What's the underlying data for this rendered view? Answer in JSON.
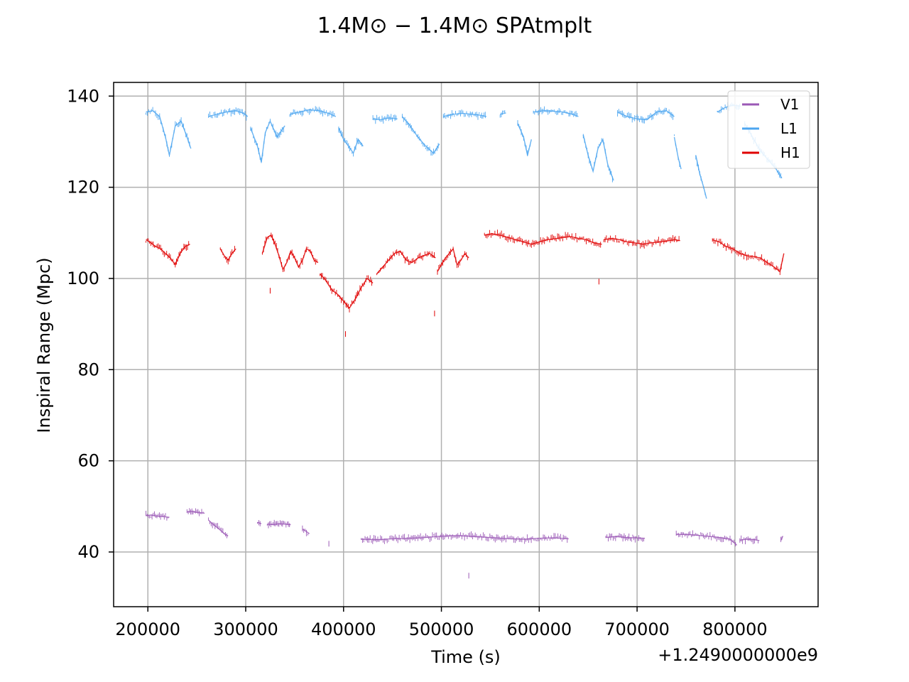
{
  "chart_data": {
    "type": "scatter",
    "title": "1.4M⊙ − 1.4M⊙ SPAtmplt",
    "xlabel": "Time (s)",
    "ylabel": "Inspiral Range (Mpc)",
    "x_offset_label": "+1.2490000000e9",
    "xlim": [
      165000,
      885000
    ],
    "ylim": [
      28,
      143
    ],
    "x_ticks": [
      200000,
      300000,
      400000,
      500000,
      600000,
      700000,
      800000
    ],
    "x_tick_labels": [
      "200000",
      "300000",
      "400000",
      "500000",
      "600000",
      "700000",
      "800000"
    ],
    "y_ticks": [
      40,
      60,
      80,
      100,
      120,
      140
    ],
    "y_tick_labels": [
      "40",
      "60",
      "80",
      "100",
      "120",
      "140"
    ],
    "grid": true,
    "legend_position": "top-right",
    "series": [
      {
        "name": "V1",
        "color": "#9b59b6",
        "segments": [
          {
            "x": [
              198000,
              203000,
              208000,
              213000,
              218000,
              222000
            ],
            "y": [
              48.0,
              48.1,
              47.9,
              47.8,
              47.7,
              47.6
            ]
          },
          {
            "x": [
              240000,
              245000,
              250000,
              255000,
              258000
            ],
            "y": [
              48.8,
              48.9,
              48.7,
              48.6,
              48.5
            ]
          },
          {
            "x": [
              262000,
              266000,
              270000,
              274000,
              278000,
              282000
            ],
            "y": [
              47.0,
              46.2,
              45.5,
              44.8,
              44.0,
              43.5
            ]
          },
          {
            "x": [
              312000,
              316000
            ],
            "y": [
              46.5,
              46.2
            ]
          },
          {
            "x": [
              322000,
              328000,
              334000,
              340000,
              346000
            ],
            "y": [
              46.1,
              46.0,
              46.2,
              46.1,
              46.0
            ]
          },
          {
            "x": [
              358000,
              362000,
              365000
            ],
            "y": [
              45.0,
              44.5,
              44.0
            ]
          },
          {
            "x": [
              418000,
              435000,
              450000,
              465000,
              480000,
              495000,
              510000,
              525000,
              540000,
              555000,
              570000,
              585000,
              600000,
              615000,
              630000
            ],
            "y": [
              42.8,
              42.7,
              42.9,
              43.0,
              43.1,
              43.4,
              43.6,
              43.5,
              43.3,
              43.1,
              42.9,
              42.8,
              43.0,
              43.1,
              42.9
            ]
          },
          {
            "x": [
              668000,
              678000,
              688000,
              698000,
              708000
            ],
            "y": [
              43.2,
              43.4,
              43.2,
              43.1,
              43.0
            ]
          },
          {
            "x": [
              740000,
              750000,
              765000,
              780000,
              795000,
              802000
            ],
            "y": [
              43.8,
              43.9,
              43.6,
              43.3,
              42.8,
              41.5
            ]
          },
          {
            "x": [
              805000,
              812000,
              820000,
              825000
            ],
            "y": [
              42.6,
              42.8,
              42.7,
              42.5
            ]
          },
          {
            "x": [
              847000,
              849000
            ],
            "y": [
              42.5,
              43.5
            ]
          }
        ],
        "outliers": [
          {
            "x": 528000,
            "y": 34.5
          },
          {
            "x": 385000,
            "y": 41.5
          }
        ]
      },
      {
        "name": "L1",
        "color": "#4da6f0",
        "segments": [
          {
            "x": [
              198000,
              205000,
              212000,
              218000,
              222000,
              228000,
              234000,
              240000,
              244000
            ],
            "y": [
              136.5,
              136.8,
              135.5,
              131.0,
              127.0,
              133.5,
              134.5,
              131.0,
              128.5
            ]
          },
          {
            "x": [
              262000,
              270000,
              280000,
              290000,
              298000,
              302000
            ],
            "y": [
              135.5,
              136.0,
              136.5,
              136.8,
              136.2,
              135.5
            ]
          },
          {
            "x": [
              305000,
              312000,
              316000,
              320000,
              325000,
              332000,
              340000
            ],
            "y": [
              133.0,
              129.0,
              125.5,
              132.0,
              134.5,
              131.0,
              133.5
            ]
          },
          {
            "x": [
              345000,
              355000,
              365000,
              375000,
              385000,
              392000
            ],
            "y": [
              136.0,
              136.5,
              137.0,
              136.8,
              136.2,
              135.5
            ]
          },
          {
            "x": [
              395000,
              400000,
              405000,
              410000,
              415000,
              420000
            ],
            "y": [
              133.0,
              130.5,
              129.0,
              127.5,
              130.5,
              129.0
            ]
          },
          {
            "x": [
              430000,
              438000,
              446000,
              455000
            ],
            "y": [
              135.0,
              134.8,
              135.2,
              135.0
            ]
          },
          {
            "x": [
              460000,
              468000,
              476000,
              484000,
              492000,
              498000
            ],
            "y": [
              135.5,
              133.5,
              131.0,
              129.0,
              127.5,
              129.5
            ]
          },
          {
            "x": [
              502000,
              512000,
              522000,
              532000,
              540000,
              546000
            ],
            "y": [
              135.5,
              136.0,
              136.2,
              136.0,
              135.8,
              135.5
            ]
          },
          {
            "x": [
              560000,
              566000
            ],
            "y": [
              136.0,
              136.3
            ]
          },
          {
            "x": [
              578000,
              584000,
              588000,
              592000
            ],
            "y": [
              134.0,
              131.0,
              127.0,
              130.5
            ]
          },
          {
            "x": [
              594000,
              604000,
              614000,
              624000,
              634000,
              640000
            ],
            "y": [
              136.5,
              136.8,
              136.7,
              136.5,
              136.0,
              135.5
            ]
          },
          {
            "x": [
              645000,
              650000,
              655000,
              660000,
              665000,
              670000,
              676000
            ],
            "y": [
              131.5,
              127.0,
              123.5,
              128.5,
              130.5,
              125.0,
              121.5
            ]
          },
          {
            "x": [
              680000,
              690000,
              700000,
              710000,
              720000,
              730000,
              738000
            ],
            "y": [
              136.5,
              135.5,
              135.0,
              134.8,
              136.5,
              136.8,
              135.5
            ]
          },
          {
            "x": [
              738000,
              742000,
              745000
            ],
            "y": [
              131.0,
              126.5,
              124.0
            ]
          },
          {
            "x": [
              760000,
              764000,
              768000,
              771000
            ],
            "y": [
              127.0,
              123.0,
              120.0,
              117.5
            ]
          },
          {
            "x": [
              782000,
              790000,
              798000,
              806000
            ],
            "y": [
              136.5,
              137.5,
              138.0,
              137.8
            ]
          },
          {
            "x": [
              810000,
              818000,
              826000,
              834000,
              842000,
              848000
            ],
            "y": [
              134.0,
              131.0,
              128.0,
              126.0,
              124.0,
              122.0
            ]
          }
        ],
        "outliers": []
      },
      {
        "name": "H1",
        "color": "#e00000",
        "segments": [
          {
            "x": [
              198000,
              203000,
              208000,
              213000,
              218000,
              223000,
              228000,
              233000,
              238000,
              243000
            ],
            "y": [
              108.5,
              107.8,
              107.0,
              106.5,
              105.5,
              104.5,
              103.0,
              105.5,
              107.0,
              107.5
            ]
          },
          {
            "x": [
              274000,
              278000,
              282000,
              286000,
              290000
            ],
            "y": [
              106.5,
              105.0,
              104.0,
              105.5,
              106.5
            ]
          },
          {
            "x": [
              317000,
              322000,
              326000,
              330000,
              334000,
              338000,
              342000,
              346000,
              350000,
              354000,
              358000,
              362000,
              366000,
              370000,
              374000
            ],
            "y": [
              105.5,
              109.0,
              109.5,
              107.5,
              105.0,
              102.0,
              103.5,
              106.0,
              104.5,
              102.5,
              104.0,
              106.5,
              106.0,
              104.0,
              103.5
            ]
          },
          {
            "x": [
              376000,
              382000,
              388000,
              394000,
              400000,
              406000,
              412000,
              418000,
              424000,
              430000
            ],
            "y": [
              101.0,
              99.5,
              97.5,
              96.5,
              95.0,
              93.5,
              95.5,
              98.0,
              100.0,
              99.0
            ]
          },
          {
            "x": [
              434000,
              440000,
              446000,
              452000,
              458000,
              464000,
              470000,
              476000,
              482000,
              488000,
              494000
            ],
            "y": [
              101.0,
              102.5,
              104.0,
              105.5,
              106.0,
              104.0,
              103.5,
              104.5,
              105.0,
              105.5,
              104.5
            ]
          },
          {
            "x": [
              496000,
              500000,
              504000,
              508000,
              512000,
              516000,
              520000,
              524000,
              528000
            ],
            "y": [
              101.5,
              103.0,
              104.5,
              105.5,
              106.5,
              103.0,
              104.0,
              105.5,
              104.5
            ]
          },
          {
            "x": [
              544000,
              552000,
              560000,
              568000,
              576000,
              584000,
              592000,
              600000,
              608000,
              616000,
              624000,
              632000,
              640000,
              648000,
              656000,
              664000
            ],
            "y": [
              109.5,
              109.8,
              109.5,
              109.0,
              108.5,
              108.0,
              107.5,
              108.0,
              108.5,
              108.7,
              109.0,
              109.2,
              108.8,
              108.5,
              107.8,
              107.5
            ]
          },
          {
            "x": [
              666000,
              674000,
              682000,
              690000,
              698000,
              706000,
              714000,
              722000,
              730000,
              738000,
              744000
            ],
            "y": [
              108.5,
              108.8,
              108.5,
              108.0,
              107.8,
              107.5,
              107.8,
              108.0,
              108.2,
              108.5,
              108.3
            ]
          },
          {
            "x": [
              777000,
              784000,
              791000,
              798000,
              805000,
              812000,
              819000,
              826000,
              833000,
              840000,
              846000,
              850000
            ],
            "y": [
              108.5,
              108.0,
              107.0,
              106.5,
              105.5,
              105.0,
              104.8,
              104.5,
              103.5,
              102.5,
              101.5,
              105.5
            ]
          }
        ],
        "outliers": [
          {
            "x": 402000,
            "y": 87.5
          },
          {
            "x": 493000,
            "y": 92.0
          },
          {
            "x": 325000,
            "y": 97.0
          },
          {
            "x": 661000,
            "y": 99.0
          }
        ]
      }
    ]
  }
}
